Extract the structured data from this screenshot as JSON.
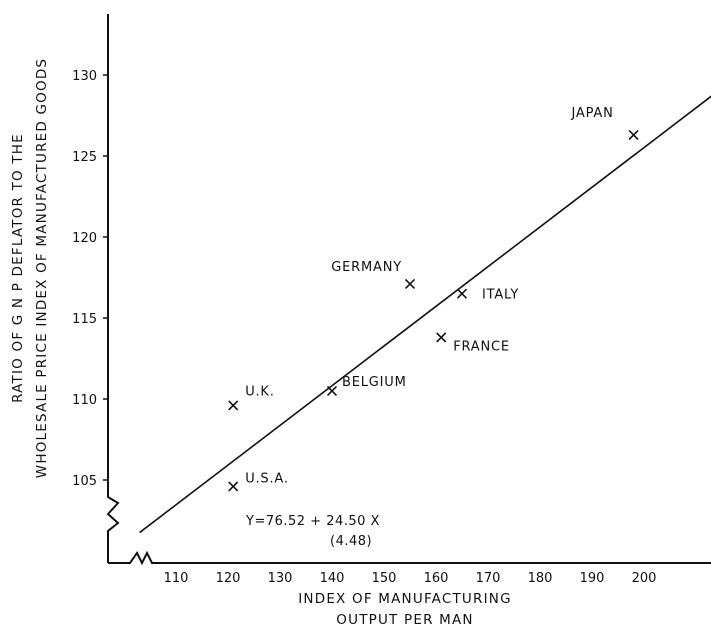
{
  "chart_data": {
    "type": "scatter",
    "title": "",
    "ylabel_line1": "RATIO OF G N P DEFLATOR TO THE",
    "ylabel_line2": "WHOLESALE PRICE INDEX OF MANUFACTURED GOODS",
    "xlabel_line1": "INDEX OF MANUFACTURING",
    "xlabel_line2": "OUTPUT PER MAN",
    "x_ticks": [
      110,
      120,
      130,
      140,
      150,
      160,
      170,
      180,
      190,
      200
    ],
    "y_ticks": [
      105,
      110,
      115,
      120,
      125,
      130
    ],
    "xlim": [
      100,
      210
    ],
    "ylim": [
      100,
      135
    ],
    "grid": false,
    "points": [
      {
        "label": "U.S.A.",
        "x": 121,
        "y": 104.6
      },
      {
        "label": "U.K.",
        "x": 121,
        "y": 109.6
      },
      {
        "label": "BELGIUM",
        "x": 140,
        "y": 110.5
      },
      {
        "label": "GERMANY",
        "x": 155,
        "y": 117.1
      },
      {
        "label": "ITALY",
        "x": 165,
        "y": 116.5
      },
      {
        "label": "FRANCE",
        "x": 161,
        "y": 113.8
      },
      {
        "label": "JAPAN",
        "x": 198,
        "y": 126.3
      }
    ],
    "regression": {
      "intercept": 76.52,
      "slope": 0.245,
      "equation_line1": "Y=76.52 + 24.50 X",
      "equation_line2": "(4.48)"
    }
  }
}
